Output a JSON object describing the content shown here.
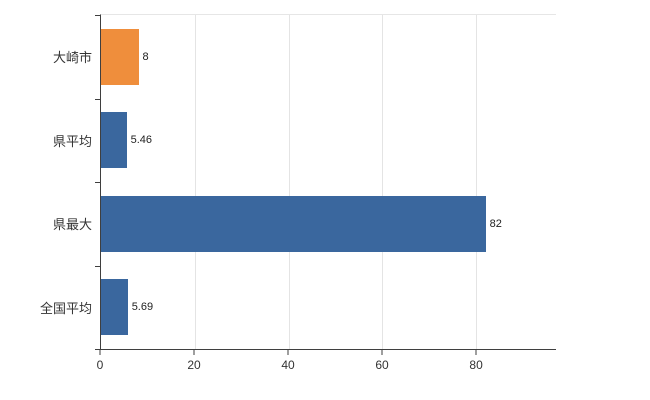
{
  "chart_data": {
    "type": "bar",
    "orientation": "horizontal",
    "categories": [
      "大崎市",
      "県平均",
      "県最大",
      "全国平均"
    ],
    "values": [
      8,
      5.46,
      82,
      5.69
    ],
    "value_labels": [
      "8",
      "5.46",
      "82",
      "5.69"
    ],
    "series": [
      {
        "name": "value",
        "values": [
          8,
          5.46,
          82,
          5.69
        ]
      }
    ],
    "colors": [
      "#ef8e3c",
      "#3a679e",
      "#3a679e",
      "#3a679e"
    ],
    "bar_color_default": "#3a679e",
    "highlight_color": "#ef8e3c",
    "xlim": [
      0,
      97
    ],
    "xticks": [
      0,
      20,
      40,
      60,
      80
    ],
    "grid": true,
    "legend": "none",
    "xlabel": "",
    "ylabel": ""
  }
}
